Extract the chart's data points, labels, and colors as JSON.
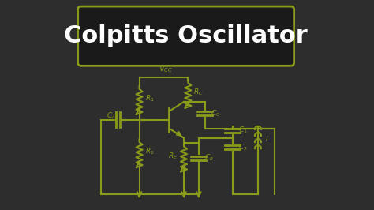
{
  "title": "Colpitts Oscillator",
  "bg_color": "#2d2d2d",
  "circuit_color": "#8a9a1a",
  "title_color": "#ffffff",
  "title_bg": "#1a1a1a",
  "title_border": "#8a9a1a",
  "figsize": [
    4.74,
    2.66
  ],
  "dpi": 100
}
